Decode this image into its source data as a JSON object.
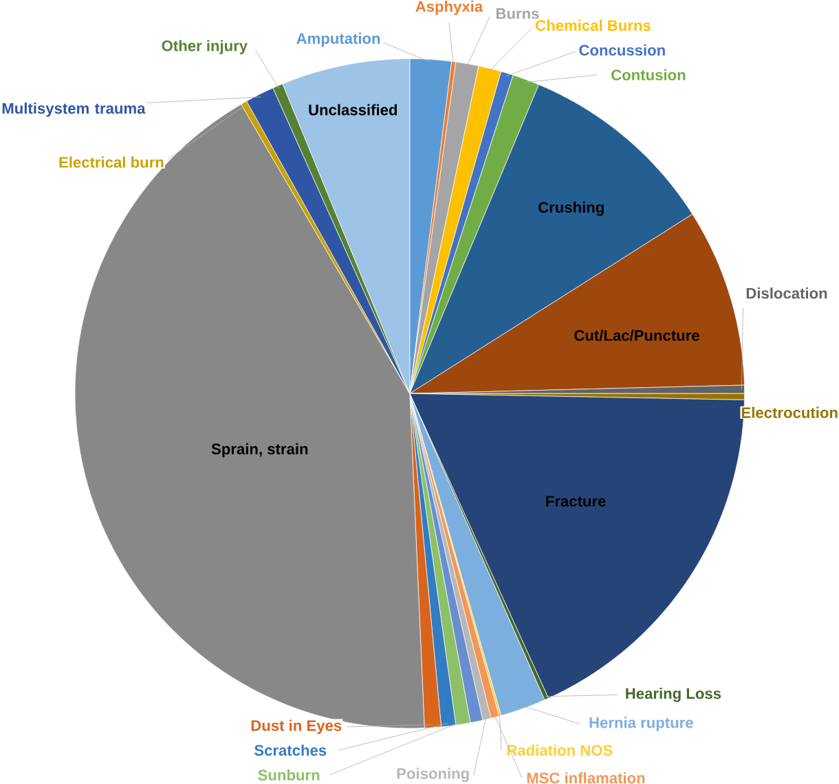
{
  "chart_data": {
    "type": "pie",
    "categories": [
      "Amputation",
      "Asphyxia",
      "Burns",
      "Chemical Burns",
      "Concussion",
      "Contusion",
      "Crushing",
      "Cut/Lac/Puncture",
      "Dislocation",
      "Electrocution",
      "Fracture",
      "Hearing Loss",
      "Hernia rupture",
      "Radiation NOS",
      "MSC inflamation",
      "Poisoning",
      null,
      "Sunburn",
      "Scratches",
      "Dust in Eyes",
      "Sprain, strain",
      "Electrical burn",
      "Multisystem trauma",
      "Other injury",
      "Unclassified"
    ],
    "values": [
      2.0,
      0.2,
      1.1,
      1.1,
      0.6,
      1.3,
      9.7,
      8.6,
      0.4,
      0.3,
      17.9,
      0.2,
      2.2,
      0.1,
      0.4,
      0.4,
      0.6,
      0.7,
      0.7,
      0.8,
      42.3,
      0.3,
      1.4,
      0.5,
      6.2
    ],
    "colors": [
      "#5b9bd5",
      "#ed7d31",
      "#a5a5a5",
      "#ffc000",
      "#4472c4",
      "#70ad47",
      "#255e91",
      "#9e480e",
      "#636363",
      "#997300",
      "#264478",
      "#43682b",
      "#7cafdd",
      "#ffcd33",
      "#f1975a",
      "#b7b7b7",
      "#698ed0",
      "#8cc168",
      "#327dc2",
      "#d9641c",
      "#888888",
      "#c9a100",
      "#2f55a4",
      "#548235",
      "#9dc3e6"
    ]
  }
}
